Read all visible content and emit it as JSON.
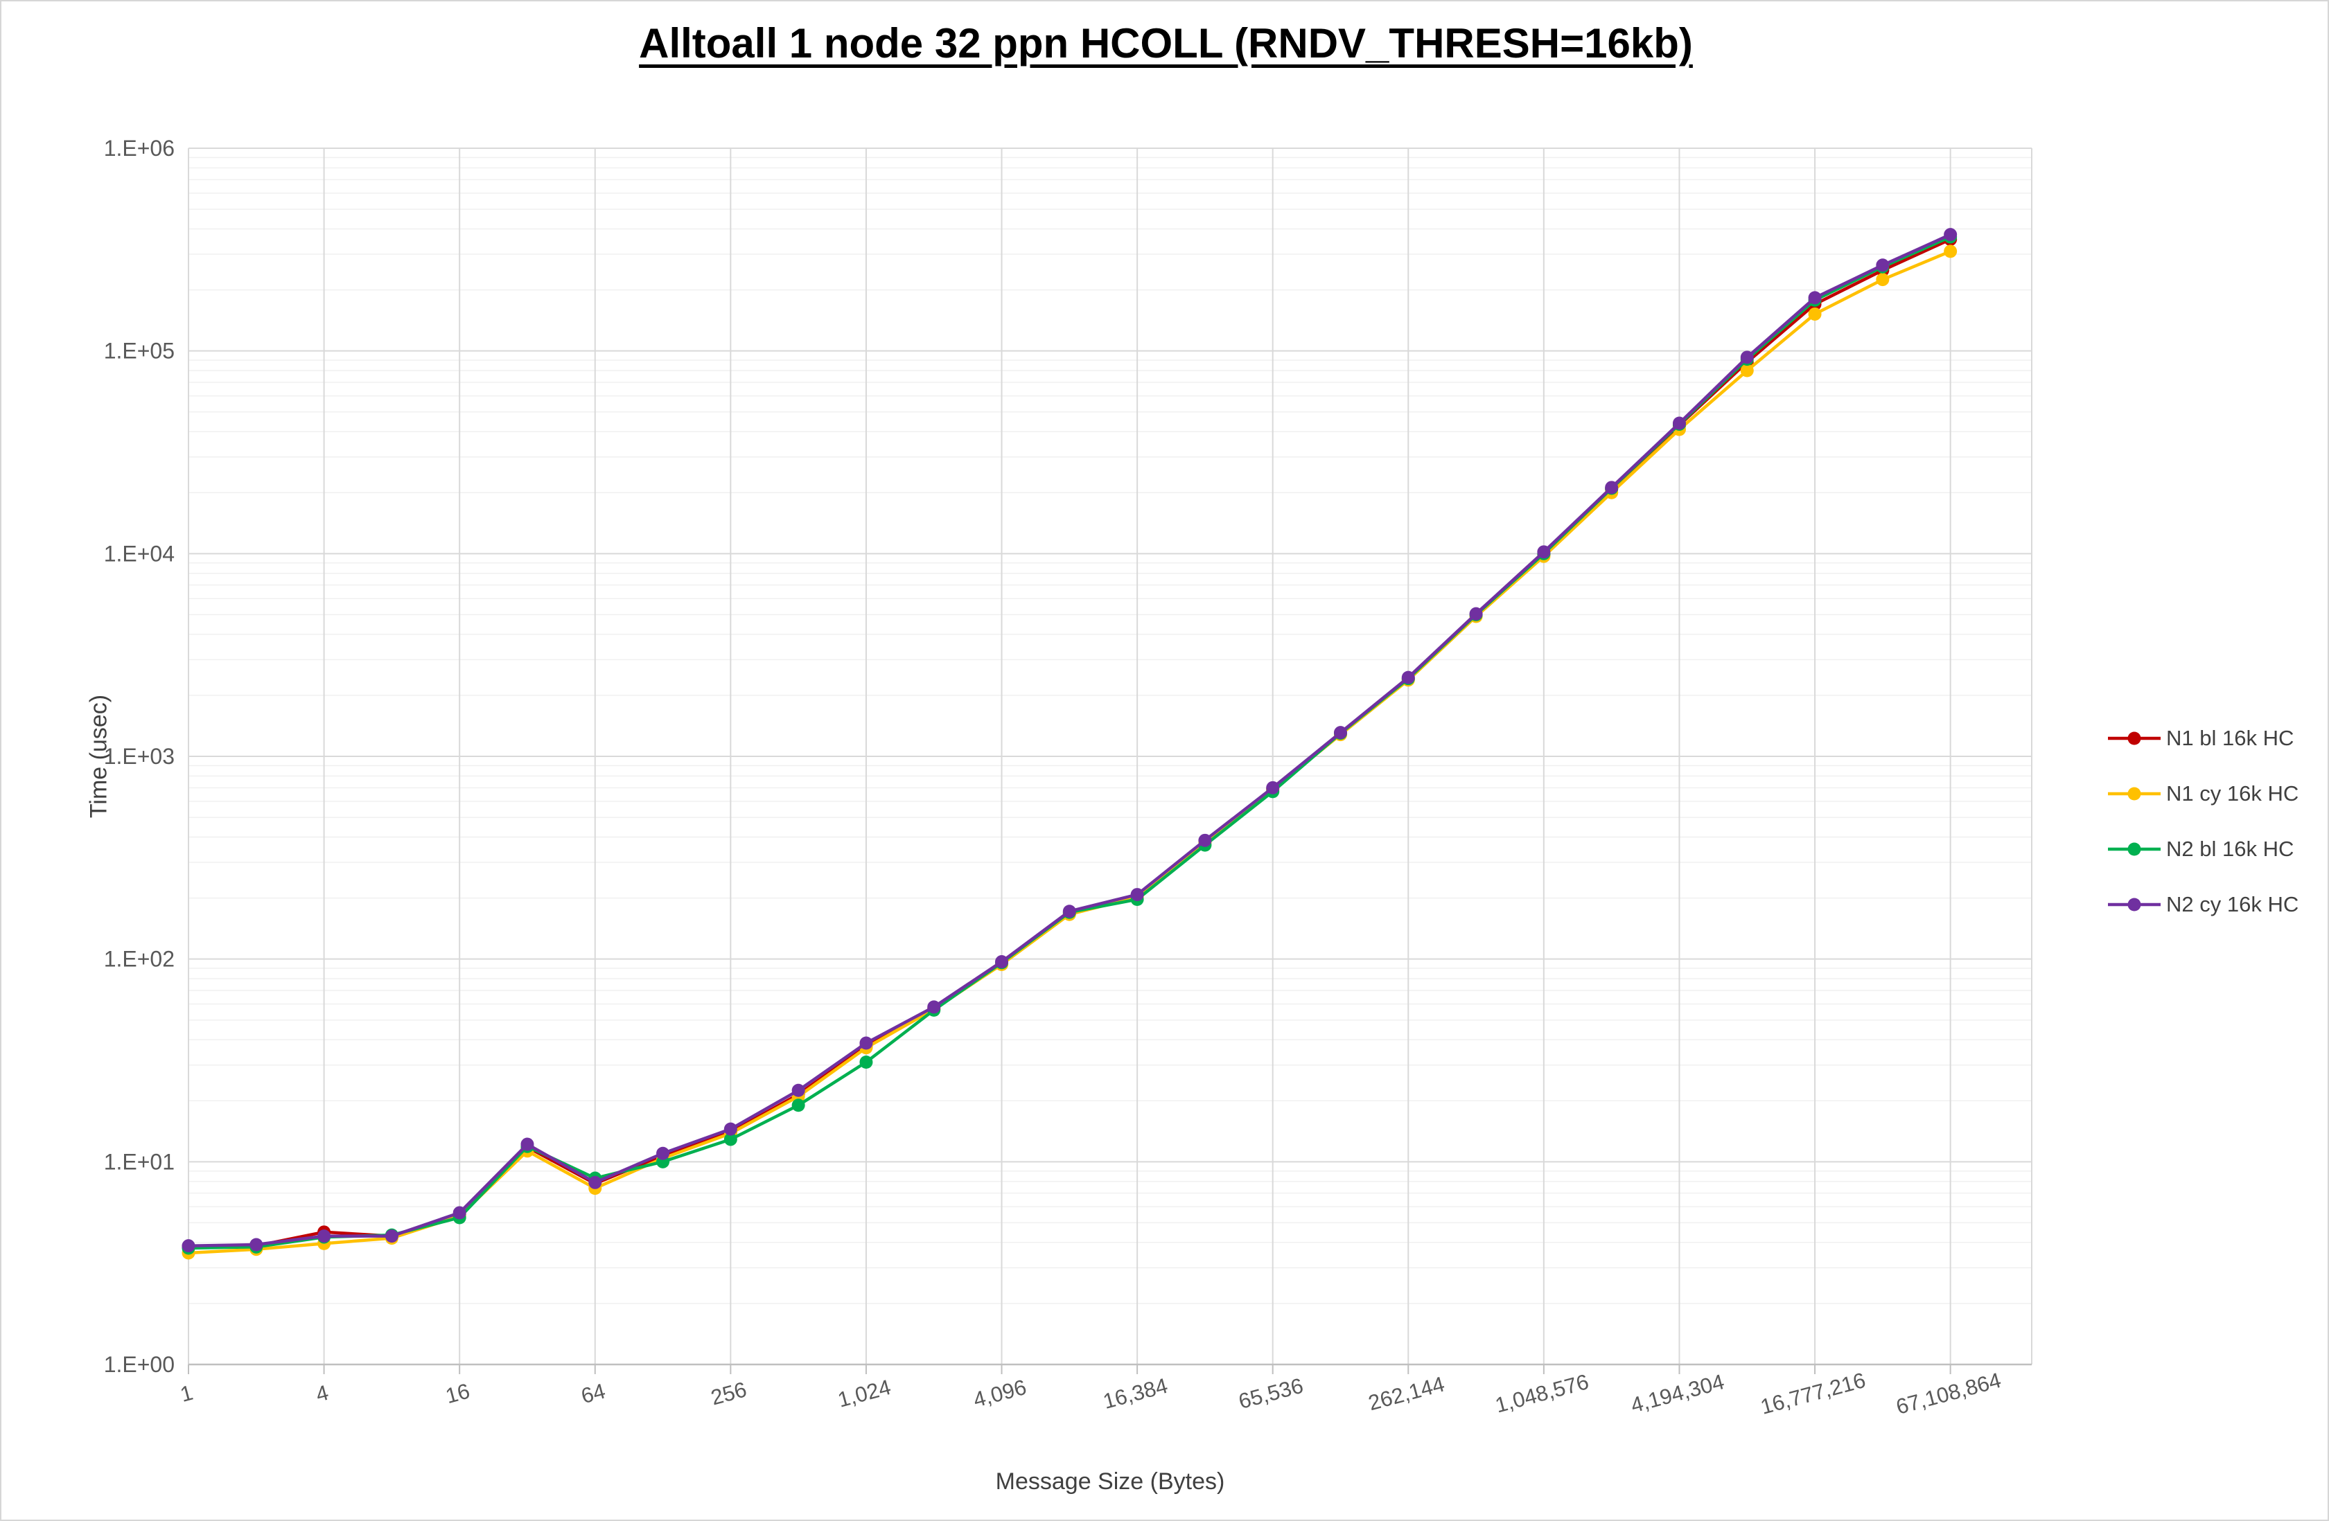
{
  "title": "Alltoall 1 node 32 ppn HCOLL (RNDV_THRESH=16kb)",
  "chart_data": {
    "type": "line",
    "title": "Alltoall 1 node 32 ppn HCOLL (RNDV_THRESH=16kb)",
    "xlabel": "Message Size (Bytes)",
    "ylabel": "Time (usec)",
    "x_scale": "log2",
    "y_scale": "log10",
    "ylim": [
      1,
      1000000
    ],
    "grid": true,
    "legend_position": "right",
    "y_tick_labels": [
      "1.E+00",
      "1.E+01",
      "1.E+02",
      "1.E+03",
      "1.E+04",
      "1.E+05",
      "1.E+06"
    ],
    "x_tick_labels": [
      "1",
      "4",
      "16",
      "64",
      "256",
      "1,024",
      "4,096",
      "16,384",
      "65,536",
      "262,144",
      "1,048,576",
      "4,194,304",
      "16,777,216",
      "67,108,864"
    ],
    "x": [
      1,
      2,
      4,
      8,
      16,
      32,
      64,
      128,
      256,
      512,
      1024,
      2048,
      4096,
      8192,
      16384,
      32768,
      65536,
      131072,
      262144,
      524288,
      1048576,
      2097152,
      4194304,
      8388608,
      16777216,
      33554432,
      67108864
    ],
    "series": [
      {
        "name": "N1 bl 16k HC",
        "color": "#C00000",
        "values": [
          3.8,
          3.85,
          4.5,
          4.3,
          5.5,
          11.8,
          7.8,
          10.7,
          14.0,
          21.5,
          37,
          57,
          95,
          168,
          205,
          380,
          690,
          1290,
          2400,
          4950,
          9900,
          20800,
          43000,
          88000,
          170000,
          250000,
          355000
        ]
      },
      {
        "name": "N1 cy 16k HC",
        "color": "#FFC000",
        "values": [
          3.55,
          3.7,
          3.95,
          4.2,
          5.4,
          11.3,
          7.4,
          10.4,
          13.8,
          21.0,
          36.5,
          56.5,
          94,
          166,
          202,
          375,
          685,
          1280,
          2380,
          4900,
          9700,
          20000,
          41000,
          80000,
          152000,
          225000,
          310000
        ]
      },
      {
        "name": "N2 bl 16k HC",
        "color": "#00B050",
        "values": [
          3.75,
          3.8,
          4.25,
          4.35,
          5.3,
          11.9,
          8.3,
          10.0,
          12.9,
          19.0,
          31,
          56,
          96,
          170,
          197,
          365,
          670,
          1300,
          2420,
          5000,
          10000,
          21000,
          43500,
          91000,
          178000,
          260000,
          365000
        ]
      },
      {
        "name": "N2 cy 16k HC",
        "color": "#7030A0",
        "values": [
          3.85,
          3.9,
          4.3,
          4.3,
          5.6,
          12.2,
          7.9,
          11.0,
          14.5,
          22.5,
          38.5,
          58,
          97,
          172,
          208,
          385,
          700,
          1310,
          2450,
          5050,
          10200,
          21200,
          44000,
          93000,
          183000,
          265000,
          375000
        ]
      }
    ],
    "colors": {
      "grid_major": "#D9D9D9",
      "grid_minor": "#F0F0F0",
      "axis_line": "#BFBFBF",
      "tick_text": "#595959"
    }
  }
}
